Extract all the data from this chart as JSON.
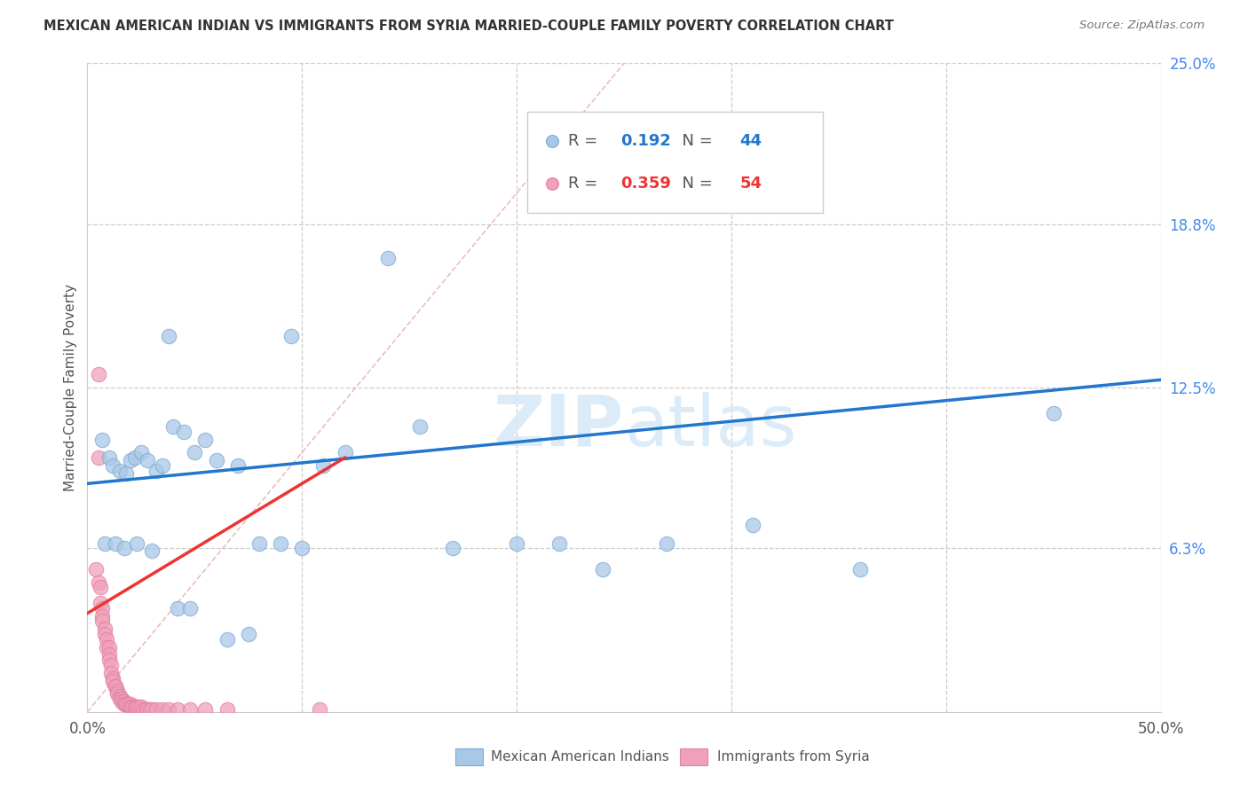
{
  "title": "MEXICAN AMERICAN INDIAN VS IMMIGRANTS FROM SYRIA MARRIED-COUPLE FAMILY POVERTY CORRELATION CHART",
  "source": "Source: ZipAtlas.com",
  "ylabel": "Married-Couple Family Poverty",
  "xlim": [
    0.0,
    0.5
  ],
  "ylim": [
    0.0,
    0.25
  ],
  "x_ticks": [
    0.0,
    0.1,
    0.2,
    0.3,
    0.4,
    0.5
  ],
  "x_tick_labels": [
    "0.0%",
    "",
    "",
    "",
    "",
    "50.0%"
  ],
  "y_tick_labels_right": [
    "6.3%",
    "12.5%",
    "18.8%",
    "25.0%"
  ],
  "y_tick_vals_right": [
    0.063,
    0.125,
    0.188,
    0.25
  ],
  "legend1_label": "Mexican American Indians",
  "legend2_label": "Immigrants from Syria",
  "R1": "0.192",
  "N1": "44",
  "R2": "0.359",
  "N2": "54",
  "blue_color": "#a8c8e8",
  "pink_color": "#f0a0b8",
  "blue_edge_color": "#7aaad0",
  "pink_edge_color": "#e080a0",
  "blue_line_color": "#2277cc",
  "red_line_color": "#ee3333",
  "diag_line_color": "#e8a0a8",
  "watermark_color": "#d8eaf8",
  "blue_scatter_x": [
    0.245,
    0.14,
    0.038,
    0.095,
    0.007,
    0.01,
    0.012,
    0.015,
    0.018,
    0.02,
    0.022,
    0.025,
    0.028,
    0.032,
    0.035,
    0.04,
    0.045,
    0.05,
    0.055,
    0.06,
    0.07,
    0.08,
    0.09,
    0.1,
    0.12,
    0.17,
    0.2,
    0.24,
    0.27,
    0.31,
    0.36,
    0.45,
    0.008,
    0.013,
    0.017,
    0.023,
    0.03,
    0.042,
    0.048,
    0.065,
    0.075,
    0.11,
    0.155,
    0.22
  ],
  "blue_scatter_y": [
    0.215,
    0.175,
    0.145,
    0.145,
    0.105,
    0.098,
    0.095,
    0.093,
    0.092,
    0.097,
    0.098,
    0.1,
    0.097,
    0.093,
    0.095,
    0.11,
    0.108,
    0.1,
    0.105,
    0.097,
    0.095,
    0.065,
    0.065,
    0.063,
    0.1,
    0.063,
    0.065,
    0.055,
    0.065,
    0.072,
    0.055,
    0.115,
    0.065,
    0.065,
    0.063,
    0.065,
    0.062,
    0.04,
    0.04,
    0.028,
    0.03,
    0.095,
    0.11,
    0.065
  ],
  "pink_scatter_x": [
    0.005,
    0.004,
    0.005,
    0.006,
    0.006,
    0.007,
    0.007,
    0.007,
    0.008,
    0.008,
    0.009,
    0.009,
    0.01,
    0.01,
    0.01,
    0.011,
    0.011,
    0.012,
    0.012,
    0.013,
    0.013,
    0.014,
    0.014,
    0.015,
    0.015,
    0.016,
    0.016,
    0.017,
    0.017,
    0.018,
    0.018,
    0.019,
    0.02,
    0.02,
    0.021,
    0.022,
    0.022,
    0.023,
    0.024,
    0.025,
    0.026,
    0.027,
    0.028,
    0.029,
    0.03,
    0.032,
    0.035,
    0.038,
    0.042,
    0.048,
    0.055,
    0.065,
    0.005,
    0.108
  ],
  "pink_scatter_y": [
    0.13,
    0.055,
    0.05,
    0.048,
    0.042,
    0.04,
    0.037,
    0.035,
    0.032,
    0.03,
    0.028,
    0.025,
    0.025,
    0.022,
    0.02,
    0.018,
    0.015,
    0.013,
    0.012,
    0.01,
    0.01,
    0.008,
    0.007,
    0.006,
    0.005,
    0.005,
    0.004,
    0.004,
    0.003,
    0.003,
    0.003,
    0.003,
    0.003,
    0.002,
    0.002,
    0.002,
    0.002,
    0.002,
    0.002,
    0.002,
    0.001,
    0.001,
    0.001,
    0.001,
    0.001,
    0.001,
    0.001,
    0.001,
    0.001,
    0.001,
    0.001,
    0.001,
    0.098,
    0.001
  ],
  "blue_trend_x": [
    0.0,
    0.5
  ],
  "blue_trend_y": [
    0.088,
    0.128
  ],
  "pink_trend_x": [
    0.0,
    0.12
  ],
  "pink_trend_y": [
    0.038,
    0.098
  ]
}
